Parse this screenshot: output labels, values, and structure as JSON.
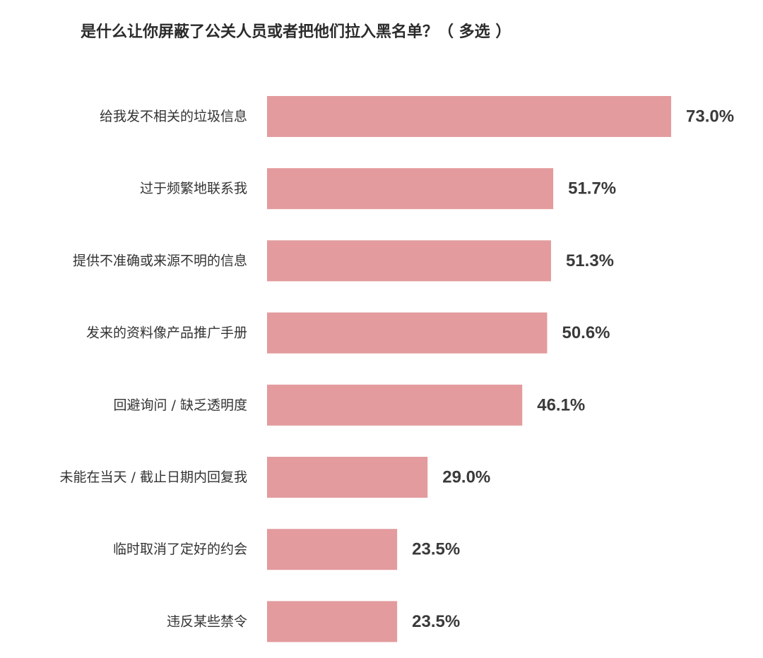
{
  "chart_data": {
    "type": "bar",
    "orientation": "horizontal",
    "title": "是什么让你屏蔽了公关人员或者把他们拉入黑名单？（ 多选 ）",
    "categories": [
      "给我发不相关的垃圾信息",
      "过于频繁地联系我",
      "提供不准确或来源不明的信息",
      "发来的资料像产品推广手册",
      "回避询问 / 缺乏透明度",
      "未能在当天 / 截止日期内回复我",
      "临时取消了定好的约会",
      "违反某些禁令"
    ],
    "values": [
      73.0,
      51.7,
      51.3,
      50.6,
      46.1,
      29.0,
      23.5,
      23.5
    ],
    "value_labels": [
      "73.0%",
      "51.7%",
      "51.3%",
      "50.6%",
      "46.1%",
      "29.0%",
      "23.5%",
      "23.5%"
    ],
    "unit": "%",
    "bar_color": "#e39b9d",
    "grid": false,
    "legend": "none"
  }
}
